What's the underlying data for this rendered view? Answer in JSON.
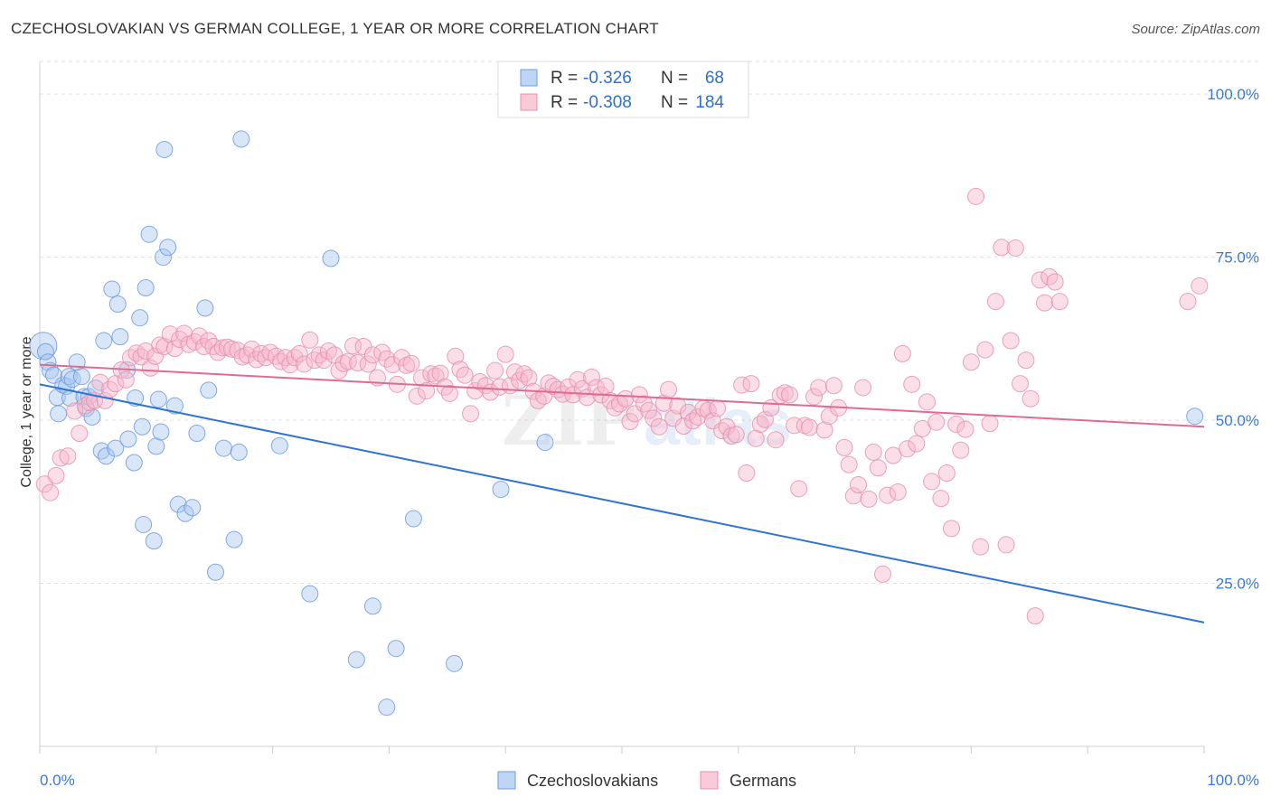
{
  "chart_data": {
    "type": "scatter",
    "title": "CZECHOSLOVAKIAN VS GERMAN COLLEGE, 1 YEAR OR MORE CORRELATION CHART",
    "source": "Source: ZipAtlas.com",
    "ylabel": "College, 1 year or more",
    "xlabel": "",
    "xlim": [
      0,
      100
    ],
    "ylim": [
      0,
      105
    ],
    "x_tick_labels": {
      "min": "0.0%",
      "max": "100.0%"
    },
    "y_tick_labels": [
      "100.0%",
      "75.0%",
      "50.0%",
      "25.0%"
    ],
    "y_ticks": [
      100,
      75,
      50,
      25
    ],
    "grid": true,
    "legend_position": "top-center",
    "watermark": "ZIPatlas",
    "series": [
      {
        "name": "Czechoslovakians",
        "color": "#a9c7f0",
        "edge": "#6d9be0",
        "line_color": "#2f74d0",
        "R": "-0.326",
        "N": "68",
        "trend": {
          "x0": 0,
          "y0": 55.5,
          "x1": 100,
          "y1": 19.0
        },
        "points": [
          [
            0.3,
            61.4
          ],
          [
            0.5,
            60.5
          ],
          [
            0.7,
            58.9
          ],
          [
            0.9,
            57.6
          ],
          [
            1.2,
            56.9
          ],
          [
            1.5,
            53.5
          ],
          [
            1.6,
            51.0
          ],
          [
            2.0,
            55.4
          ],
          [
            2.3,
            55.2
          ],
          [
            2.5,
            56.7
          ],
          [
            2.6,
            53.4
          ],
          [
            2.8,
            56.3
          ],
          [
            3.2,
            58.9
          ],
          [
            3.6,
            56.7
          ],
          [
            3.8,
            53.6
          ],
          [
            4.0,
            51.8
          ],
          [
            4.2,
            53.6
          ],
          [
            4.5,
            50.5
          ],
          [
            4.8,
            54.9
          ],
          [
            5.3,
            45.3
          ],
          [
            5.5,
            62.2
          ],
          [
            5.7,
            44.5
          ],
          [
            6.2,
            70.1
          ],
          [
            6.5,
            45.7
          ],
          [
            6.7,
            67.8
          ],
          [
            6.9,
            62.8
          ],
          [
            7.5,
            57.7
          ],
          [
            7.6,
            47.1
          ],
          [
            8.1,
            43.5
          ],
          [
            8.2,
            53.4
          ],
          [
            8.6,
            65.7
          ],
          [
            8.8,
            49.0
          ],
          [
            8.9,
            34.0
          ],
          [
            9.1,
            70.3
          ],
          [
            9.4,
            78.5
          ],
          [
            9.8,
            31.5
          ],
          [
            10.0,
            46.0
          ],
          [
            10.2,
            53.2
          ],
          [
            10.4,
            48.2
          ],
          [
            10.6,
            75.0
          ],
          [
            10.7,
            91.5
          ],
          [
            11.0,
            76.5
          ],
          [
            11.6,
            52.2
          ],
          [
            11.9,
            37.1
          ],
          [
            12.5,
            35.7
          ],
          [
            13.1,
            36.6
          ],
          [
            13.5,
            48.0
          ],
          [
            14.2,
            67.2
          ],
          [
            14.5,
            54.6
          ],
          [
            15.1,
            26.7
          ],
          [
            15.8,
            45.7
          ],
          [
            16.7,
            31.7
          ],
          [
            17.1,
            45.1
          ],
          [
            17.3,
            93.1
          ],
          [
            20.6,
            46.1
          ],
          [
            23.2,
            23.4
          ],
          [
            25.0,
            74.8
          ],
          [
            27.2,
            13.3
          ],
          [
            28.6,
            21.5
          ],
          [
            29.8,
            6.0
          ],
          [
            30.6,
            15.0
          ],
          [
            32.1,
            34.9
          ],
          [
            35.6,
            12.7
          ],
          [
            39.6,
            39.4
          ],
          [
            43.4,
            46.6
          ],
          [
            99.2,
            50.6
          ]
        ]
      },
      {
        "name": "Germans",
        "color": "#f7b8cb",
        "edge": "#e890ad",
        "line_color": "#e06a94",
        "R": "-0.308",
        "N": "184",
        "trend": {
          "x0": 0,
          "y0": 58.5,
          "x1": 100,
          "y1": 49.0
        },
        "points": [
          [
            0.4,
            40.2
          ],
          [
            0.9,
            38.9
          ],
          [
            1.4,
            41.5
          ],
          [
            1.8,
            44.2
          ],
          [
            2.4,
            44.5
          ],
          [
            3.0,
            51.4
          ],
          [
            3.4,
            48.0
          ],
          [
            3.9,
            52.2
          ],
          [
            4.3,
            52.7
          ],
          [
            4.7,
            53.0
          ],
          [
            5.2,
            55.8
          ],
          [
            5.6,
            53.0
          ],
          [
            6.0,
            54.7
          ],
          [
            6.5,
            55.6
          ],
          [
            7.0,
            57.7
          ],
          [
            7.4,
            56.2
          ],
          [
            7.8,
            59.6
          ],
          [
            8.3,
            60.3
          ],
          [
            8.7,
            59.7
          ],
          [
            9.1,
            60.6
          ],
          [
            9.5,
            58.0
          ],
          [
            9.9,
            59.8
          ],
          [
            10.3,
            61.5
          ],
          [
            10.7,
            61.3
          ],
          [
            11.2,
            63.2
          ],
          [
            11.6,
            61.0
          ],
          [
            12.0,
            62.4
          ],
          [
            12.4,
            63.3
          ],
          [
            12.8,
            61.6
          ],
          [
            13.3,
            62.0
          ],
          [
            13.7,
            62.9
          ],
          [
            14.1,
            61.3
          ],
          [
            14.5,
            62.2
          ],
          [
            14.9,
            61.3
          ],
          [
            15.3,
            60.4
          ],
          [
            15.7,
            61.1
          ],
          [
            16.1,
            61.2
          ],
          [
            16.5,
            60.9
          ],
          [
            17.0,
            60.7
          ],
          [
            17.4,
            59.7
          ],
          [
            17.8,
            60.0
          ],
          [
            18.2,
            60.9
          ],
          [
            18.6,
            59.3
          ],
          [
            19.0,
            60.2
          ],
          [
            19.4,
            59.6
          ],
          [
            19.8,
            60.4
          ],
          [
            20.3,
            59.8
          ],
          [
            20.7,
            59.0
          ],
          [
            21.1,
            59.6
          ],
          [
            21.5,
            58.5
          ],
          [
            21.9,
            59.6
          ],
          [
            22.3,
            60.2
          ],
          [
            22.7,
            58.6
          ],
          [
            23.2,
            62.3
          ],
          [
            23.6,
            59.2
          ],
          [
            24.0,
            60.0
          ],
          [
            24.4,
            59.2
          ],
          [
            24.8,
            60.6
          ],
          [
            25.3,
            60.0
          ],
          [
            25.7,
            57.6
          ],
          [
            26.1,
            58.7
          ],
          [
            26.5,
            59.0
          ],
          [
            26.9,
            61.4
          ],
          [
            27.3,
            58.8
          ],
          [
            27.8,
            61.3
          ],
          [
            28.2,
            58.6
          ],
          [
            28.6,
            60.0
          ],
          [
            29.0,
            56.5
          ],
          [
            29.4,
            60.4
          ],
          [
            29.8,
            59.4
          ],
          [
            30.3,
            58.5
          ],
          [
            30.7,
            55.5
          ],
          [
            31.1,
            59.6
          ],
          [
            31.5,
            58.4
          ],
          [
            31.9,
            58.7
          ],
          [
            32.4,
            53.7
          ],
          [
            32.8,
            56.5
          ],
          [
            33.2,
            54.5
          ],
          [
            33.6,
            57.1
          ],
          [
            34.0,
            56.8
          ],
          [
            34.4,
            57.2
          ],
          [
            34.8,
            55.1
          ],
          [
            35.2,
            54.1
          ],
          [
            35.7,
            59.8
          ],
          [
            36.1,
            57.8
          ],
          [
            36.5,
            56.9
          ],
          [
            37.0,
            51.0
          ],
          [
            37.4,
            54.5
          ],
          [
            37.8,
            55.9
          ],
          [
            38.3,
            55.3
          ],
          [
            38.7,
            54.3
          ],
          [
            39.1,
            57.6
          ],
          [
            39.5,
            55.1
          ],
          [
            40.0,
            60.1
          ],
          [
            40.4,
            55.3
          ],
          [
            40.8,
            57.4
          ],
          [
            41.2,
            56.1
          ],
          [
            41.6,
            57.1
          ],
          [
            42.0,
            56.5
          ],
          [
            42.4,
            54.4
          ],
          [
            42.8,
            53.0
          ],
          [
            43.3,
            53.7
          ],
          [
            43.7,
            55.7
          ],
          [
            44.1,
            55.2
          ],
          [
            44.5,
            54.7
          ],
          [
            44.9,
            54.0
          ],
          [
            45.4,
            55.1
          ],
          [
            45.8,
            53.9
          ],
          [
            46.2,
            56.2
          ],
          [
            46.6,
            54.8
          ],
          [
            47.0,
            53.5
          ],
          [
            47.4,
            56.6
          ],
          [
            47.8,
            55.0
          ],
          [
            48.2,
            53.9
          ],
          [
            48.6,
            55.2
          ],
          [
            49.0,
            53.0
          ],
          [
            49.4,
            51.9
          ],
          [
            49.8,
            52.5
          ],
          [
            50.3,
            53.3
          ],
          [
            50.7,
            49.8
          ],
          [
            51.1,
            51.0
          ],
          [
            51.5,
            53.9
          ],
          [
            51.9,
            52.5
          ],
          [
            52.3,
            51.5
          ],
          [
            52.7,
            50.3
          ],
          [
            53.2,
            49.0
          ],
          [
            53.6,
            52.6
          ],
          [
            54.0,
            54.7
          ],
          [
            54.4,
            50.3
          ],
          [
            54.8,
            52.2
          ],
          [
            55.3,
            49.1
          ],
          [
            55.7,
            51.2
          ],
          [
            56.1,
            49.9
          ],
          [
            56.5,
            50.5
          ],
          [
            57.0,
            51.8
          ],
          [
            57.4,
            51.5
          ],
          [
            57.8,
            49.9
          ],
          [
            58.2,
            51.8
          ],
          [
            58.6,
            48.4
          ],
          [
            59.0,
            49.0
          ],
          [
            59.4,
            47.6
          ],
          [
            59.8,
            47.8
          ],
          [
            60.3,
            55.4
          ],
          [
            60.7,
            41.9
          ],
          [
            61.1,
            55.6
          ],
          [
            61.5,
            47.2
          ],
          [
            61.9,
            49.4
          ],
          [
            62.3,
            50.1
          ],
          [
            62.8,
            51.9
          ],
          [
            63.2,
            47.0
          ],
          [
            63.6,
            53.8
          ],
          [
            64.0,
            54.2
          ],
          [
            64.4,
            53.9
          ],
          [
            64.8,
            49.2
          ],
          [
            65.2,
            39.5
          ],
          [
            65.7,
            49.2
          ],
          [
            66.1,
            48.9
          ],
          [
            66.5,
            53.6
          ],
          [
            66.9,
            55.0
          ],
          [
            67.4,
            48.5
          ],
          [
            67.8,
            50.6
          ],
          [
            68.2,
            55.3
          ],
          [
            68.6,
            51.9
          ],
          [
            69.1,
            45.8
          ],
          [
            69.5,
            43.2
          ],
          [
            69.9,
            38.4
          ],
          [
            70.3,
            40.1
          ],
          [
            70.7,
            55.0
          ],
          [
            71.2,
            37.9
          ],
          [
            71.6,
            45.1
          ],
          [
            72.0,
            42.7
          ],
          [
            72.4,
            26.4
          ],
          [
            72.8,
            38.5
          ],
          [
            73.3,
            44.6
          ],
          [
            73.7,
            39.0
          ],
          [
            74.1,
            60.2
          ],
          [
            74.5,
            45.6
          ],
          [
            74.9,
            55.5
          ],
          [
            75.3,
            46.4
          ],
          [
            75.8,
            48.7
          ],
          [
            76.2,
            52.8
          ],
          [
            76.6,
            40.6
          ],
          [
            77.0,
            49.7
          ],
          [
            77.4,
            38.0
          ],
          [
            77.9,
            41.9
          ],
          [
            78.3,
            33.4
          ],
          [
            78.7,
            49.4
          ],
          [
            79.1,
            45.4
          ],
          [
            79.5,
            48.6
          ],
          [
            80.0,
            58.9
          ],
          [
            80.4,
            84.3
          ],
          [
            80.8,
            30.6
          ],
          [
            81.2,
            60.8
          ],
          [
            81.6,
            49.5
          ],
          [
            82.1,
            68.2
          ],
          [
            82.6,
            76.5
          ],
          [
            83.0,
            30.9
          ],
          [
            83.4,
            62.2
          ],
          [
            83.8,
            76.4
          ],
          [
            84.2,
            55.6
          ],
          [
            84.7,
            59.2
          ],
          [
            85.1,
            53.3
          ],
          [
            85.5,
            20.0
          ],
          [
            85.9,
            71.5
          ],
          [
            86.3,
            68.0
          ],
          [
            86.7,
            72.0
          ],
          [
            87.2,
            71.2
          ],
          [
            87.6,
            68.2
          ],
          [
            98.6,
            68.2
          ],
          [
            99.6,
            70.6
          ]
        ]
      }
    ]
  }
}
